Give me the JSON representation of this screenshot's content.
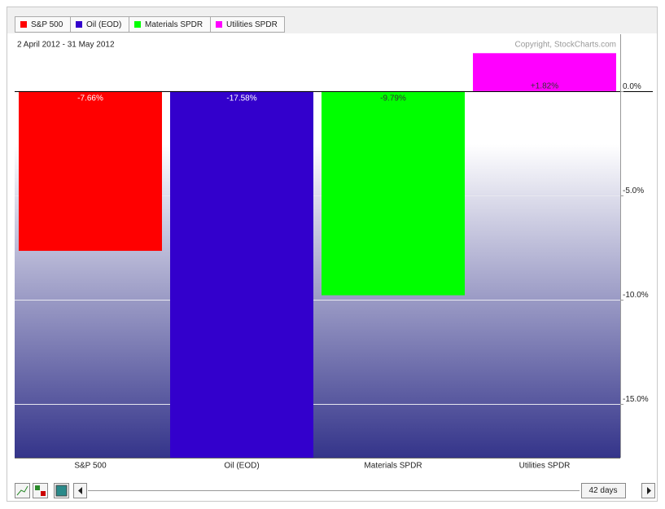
{
  "chart_data": {
    "type": "bar",
    "subtitle": "2 April 2012 - 31 May 2012",
    "copyright": "Copyright, StockCharts.com",
    "categories": [
      "S&P 500",
      "Oil (EOD)",
      "Materials SPDR",
      "Utilities SPDR"
    ],
    "values": [
      -7.66,
      -17.58,
      -9.79,
      1.82
    ],
    "value_labels": [
      "-7.66%",
      "-17.58%",
      "-9.79%",
      "+1.82%"
    ],
    "colors": [
      "#ff0000",
      "#3300cc",
      "#00ff00",
      "#ff00ff"
    ],
    "ylim": [
      -17.58,
      2.73
    ],
    "yticks": [
      {
        "value": 0,
        "label": "0.0%"
      },
      {
        "value": -5,
        "label": "-5.0%"
      },
      {
        "value": -10,
        "label": "-10.0%"
      },
      {
        "value": -15,
        "label": "-15.0%"
      }
    ],
    "grid": true,
    "legend": "top"
  },
  "controls": {
    "period": "42 days"
  }
}
